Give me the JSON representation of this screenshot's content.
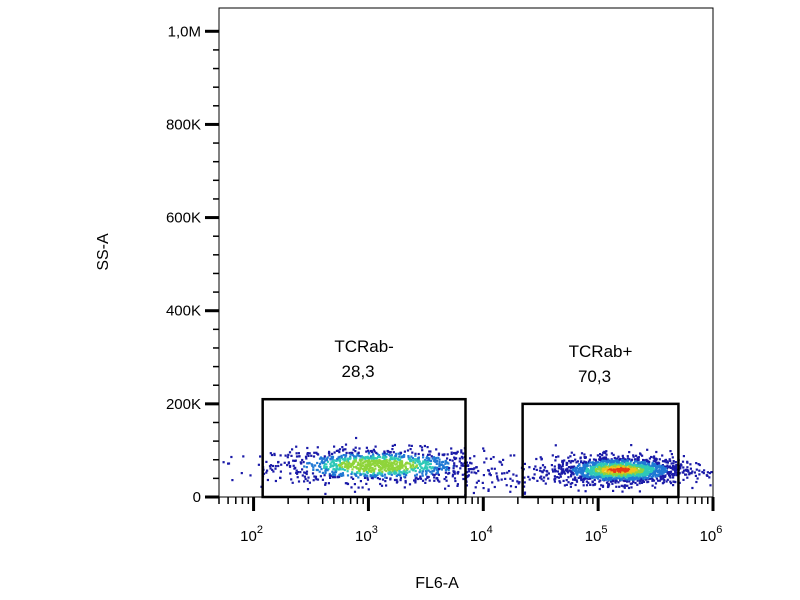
{
  "chart_data": {
    "type": "scatter",
    "subtype": "flow-cytometry-density",
    "title": "",
    "xlabel": "FL6-A",
    "ylabel": "SS-A",
    "x_scale": "log",
    "y_scale": "linear",
    "xlim": [
      50,
      1000000
    ],
    "ylim": [
      0,
      1050000
    ],
    "x_ticks": [
      {
        "value": 100,
        "base": "10",
        "exp": "2"
      },
      {
        "value": 1000,
        "base": "10",
        "exp": "3"
      },
      {
        "value": 10000,
        "base": "10",
        "exp": "4"
      },
      {
        "value": 100000,
        "base": "10",
        "exp": "5"
      },
      {
        "value": 1000000,
        "base": "10",
        "exp": "6"
      }
    ],
    "y_ticks": [
      {
        "value": 0,
        "label": "0"
      },
      {
        "value": 200000,
        "label": "200K"
      },
      {
        "value": 400000,
        "label": "400K"
      },
      {
        "value": 600000,
        "label": "600K"
      },
      {
        "value": 800000,
        "label": "800K"
      },
      {
        "value": 1000000,
        "label": "1,0M"
      }
    ],
    "gates": [
      {
        "name": "TCRab-",
        "value": "28,3",
        "x_range": [
          120,
          7000
        ],
        "y_range": [
          0,
          210000
        ]
      },
      {
        "name": "TCRab+",
        "value": "70,3",
        "x_range": [
          22000,
          500000
        ],
        "y_range": [
          0,
          200000
        ]
      }
    ],
    "populations": [
      {
        "center_x": 1200,
        "center_y": 70000,
        "spread_log_x": 0.45,
        "spread_y": 18000,
        "count": 1100
      },
      {
        "center_x": 150000,
        "center_y": 60000,
        "spread_log_x": 0.28,
        "spread_y": 15000,
        "count": 1500
      }
    ],
    "colors": {
      "low": "#1a1aa8",
      "mid_low": "#1f78d4",
      "mid": "#2ec9b8",
      "mid_high": "#8fd43b",
      "high": "#f0c21a",
      "peak": "#e83a14"
    }
  }
}
